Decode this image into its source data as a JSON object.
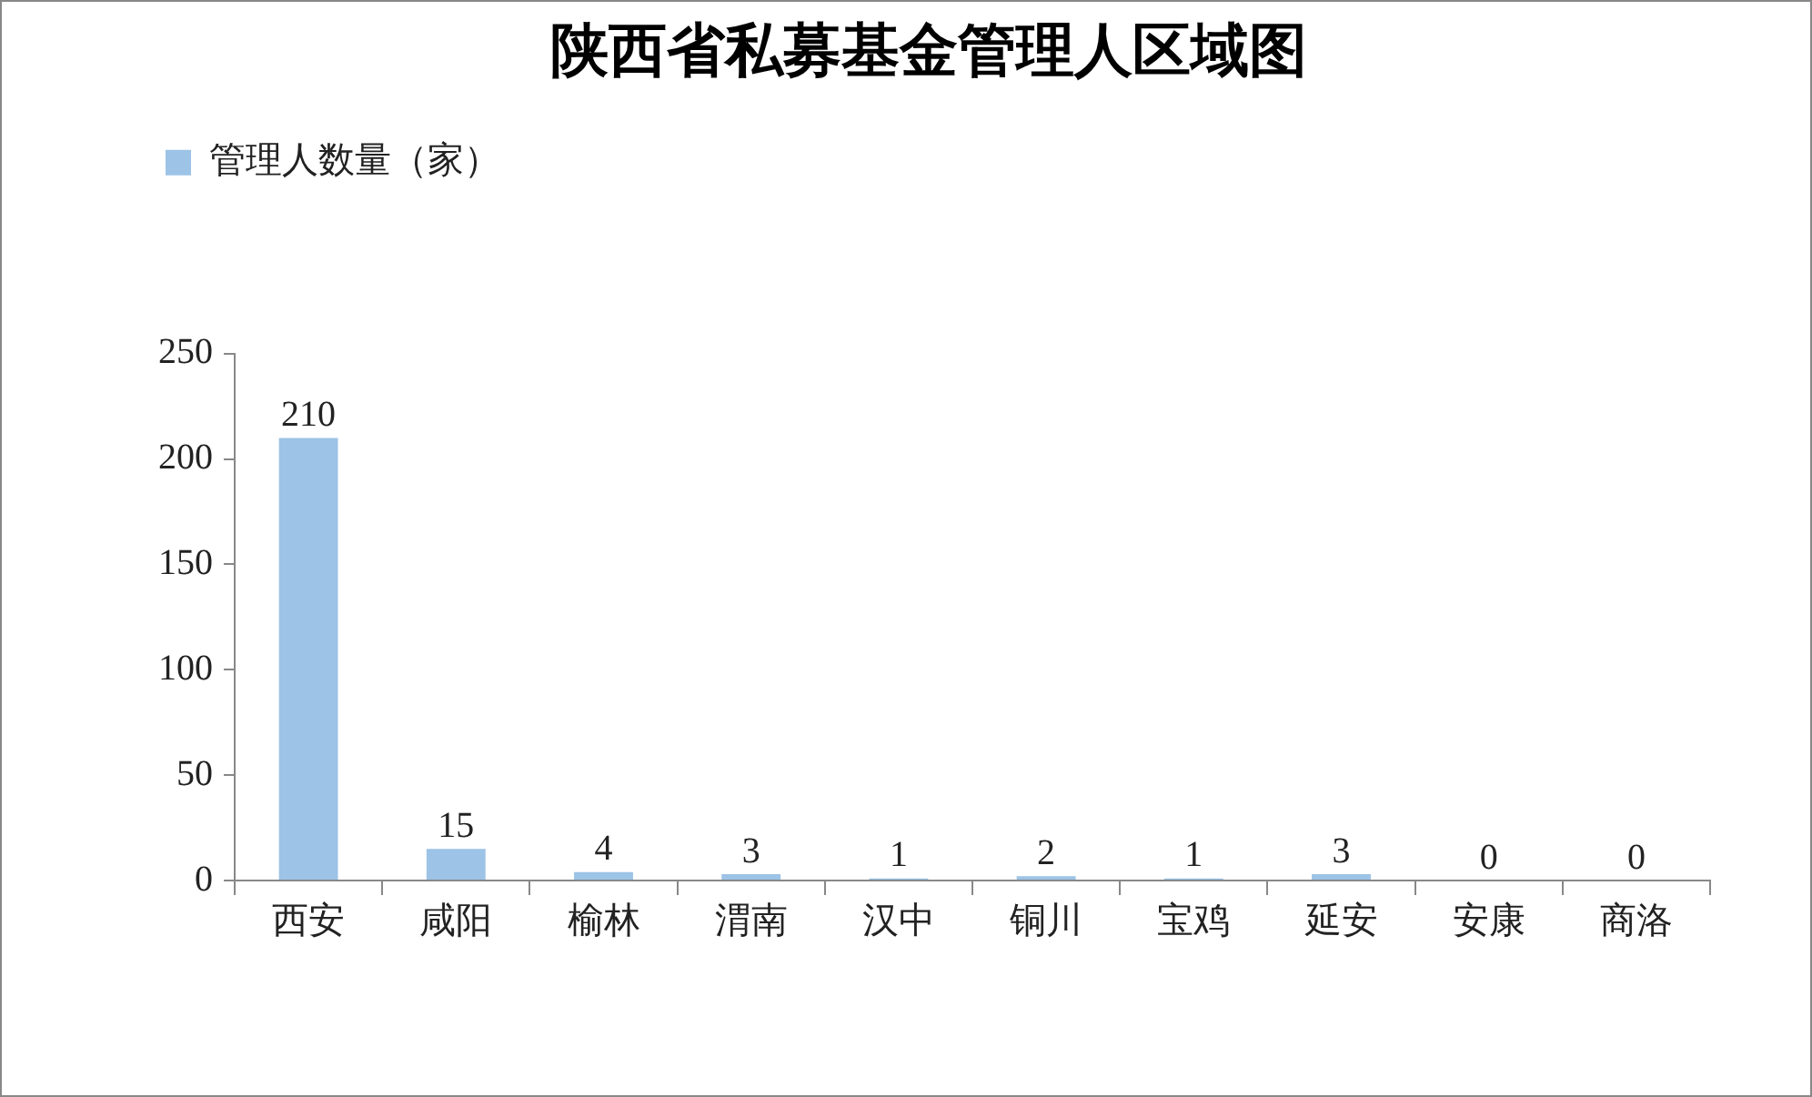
{
  "chart_data": {
    "type": "bar",
    "title": "陕西省私募基金管理人区域图",
    "categories": [
      "西安",
      "咸阳",
      "榆林",
      "渭南",
      "汉中",
      "铜川",
      "宝鸡",
      "延安",
      "安康",
      "商洛"
    ],
    "series": [
      {
        "name": "管理人数量（家）",
        "color": "#9dc3e6",
        "values": [
          210,
          15,
          4,
          3,
          1,
          2,
          1,
          3,
          0,
          0
        ]
      }
    ],
    "ylim": [
      0,
      250
    ],
    "yticks": [
      0,
      50,
      100,
      150,
      200,
      250
    ],
    "grid": false,
    "legend": "top left",
    "data_labels": true
  }
}
